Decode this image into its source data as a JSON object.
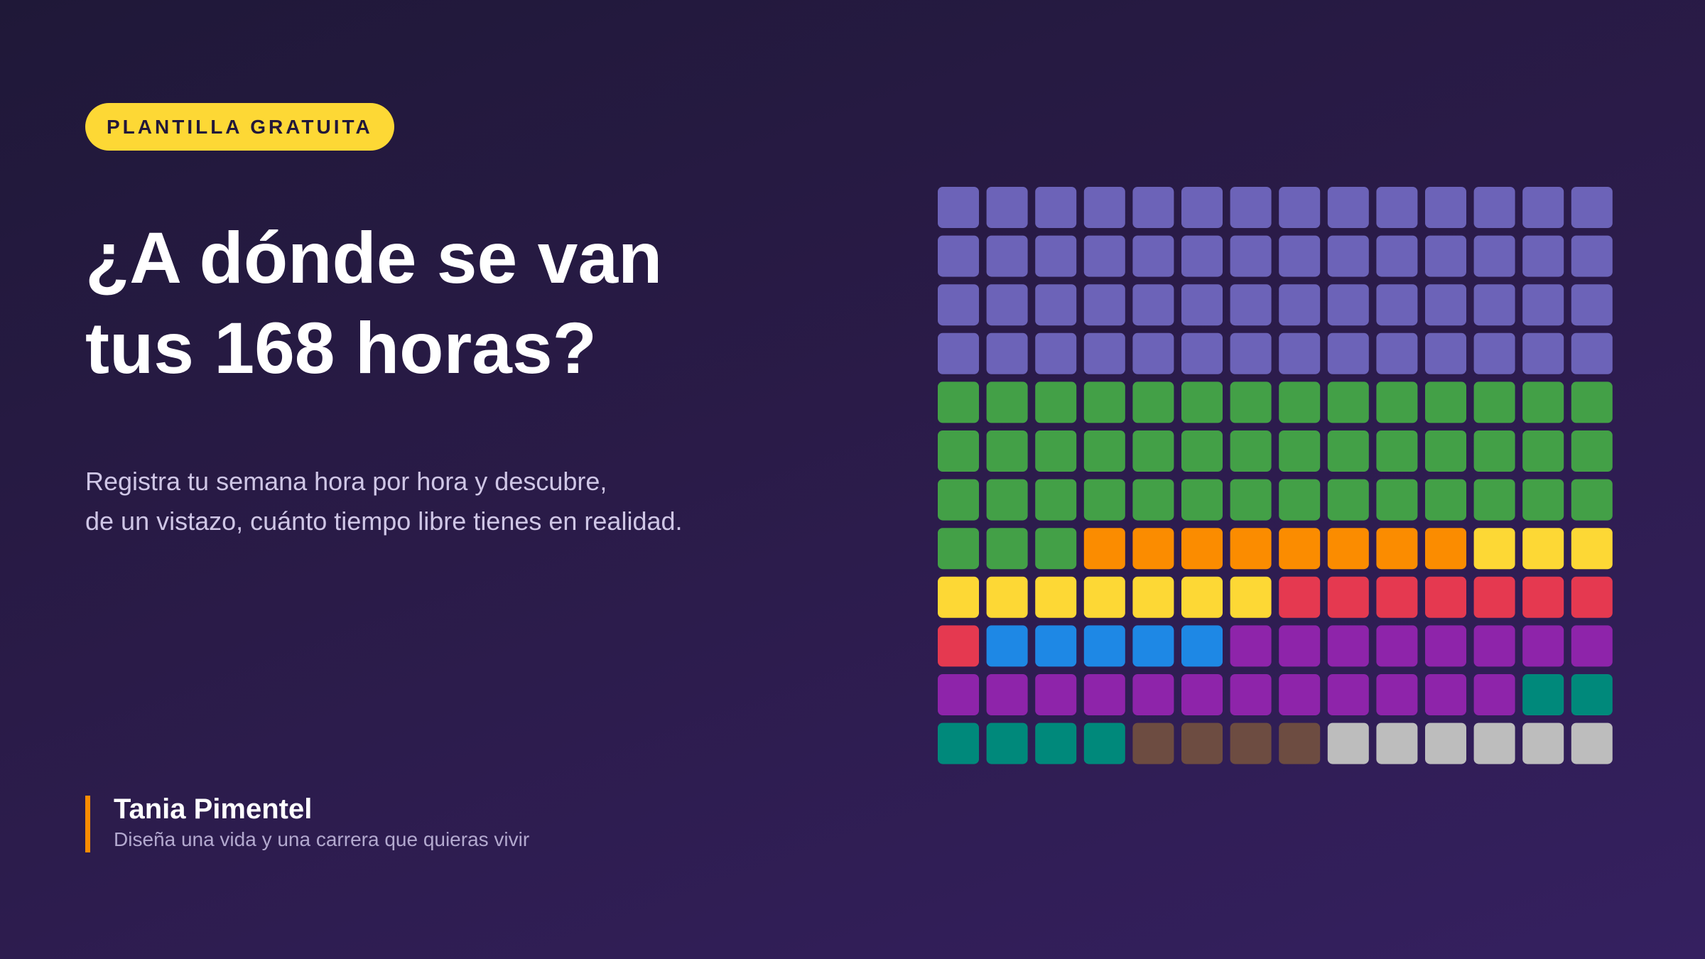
{
  "badge": "PLANTILLA GRATUITA",
  "title": [
    "¿A dónde se van",
    "tus 168 horas?"
  ],
  "subtitle": [
    "Registra tu semana hora por hora y descubre,",
    "de un vistazo, cuánto tiempo libre tienes en realidad."
  ],
  "author": {
    "name": "Tania Pimentel",
    "tagline": "Diseña una vida y una carrera que quieras vivir"
  },
  "chart_data": {
    "type": "waffle",
    "series": [
      {
        "color": "#6c63b8",
        "value": 56
      },
      {
        "color": "#43a047",
        "value": 45
      },
      {
        "color": "#fb8c00",
        "value": 8
      },
      {
        "color": "#fdd835",
        "value": 10
      },
      {
        "color": "#e53950",
        "value": 8
      },
      {
        "color": "#1e88e5",
        "value": 5
      },
      {
        "color": "#8e24aa",
        "value": 20
      },
      {
        "color": "#00897b",
        "value": 6
      },
      {
        "color": "#6d4c41",
        "value": 4
      },
      {
        "color": "#bdbdbd",
        "value": 6
      }
    ]
  }
}
